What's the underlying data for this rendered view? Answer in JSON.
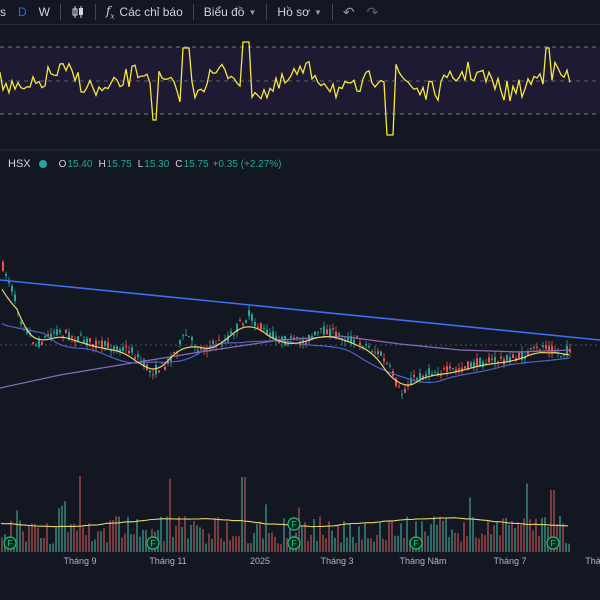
{
  "toolbar": {
    "intervals": [
      "D",
      "W"
    ],
    "active_interval": "D",
    "indicators_label": "Các chỉ báo",
    "chart_label": "Biểu đồ",
    "profile_label": "Hồ sơ"
  },
  "legend": {
    "exchange": "HSX",
    "open_label": "O",
    "open": "15.40",
    "high_label": "H",
    "high": "15.75",
    "low_label": "L",
    "low": "15.30",
    "close_label": "C",
    "close": "15.75",
    "change": "+0.35 (+2.27%)"
  },
  "x_axis_labels": [
    "Tháng 9",
    "Tháng 11",
    "2025",
    "Tháng 3",
    "Tháng Năm",
    "Tháng 7",
    "Thá"
  ],
  "dividend_marker_label": "F",
  "colors": {
    "background": "#131722",
    "up": "#26a69a",
    "down": "#ef5350",
    "accent": "#2962ff",
    "oscillator": "#f5e83b",
    "trendline": "#3d6ef5",
    "ma_yellow": "#e8d36b",
    "ma_blue": "#4a63c9",
    "ma_purple": "#8a6bb8"
  }
}
